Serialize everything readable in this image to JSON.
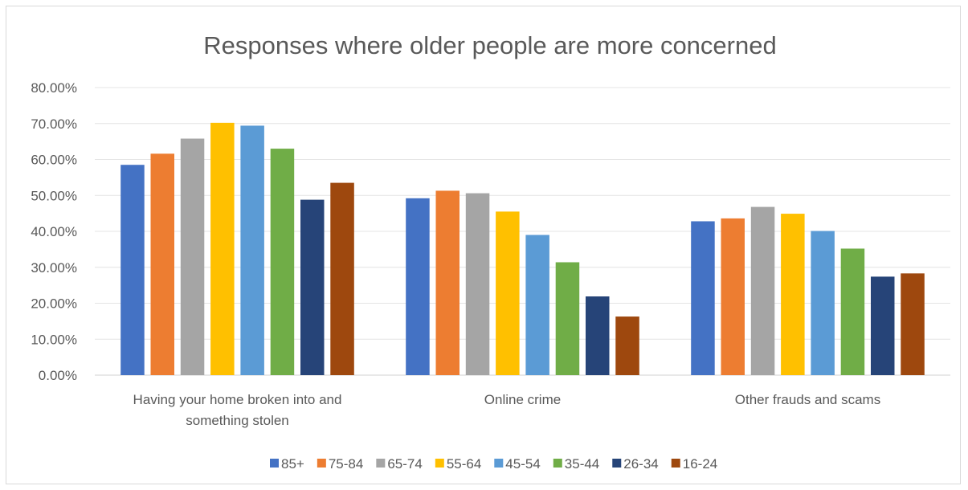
{
  "chart_data": {
    "type": "bar",
    "title": "Responses where older people are more concerned",
    "categories": [
      [
        "Having your home broken into and",
        "something stolen"
      ],
      [
        "Online crime"
      ],
      [
        "Other frauds and scams"
      ]
    ],
    "ylim": [
      0,
      0.8
    ],
    "yticks": [
      "0.00%",
      "10.00%",
      "20.00%",
      "30.00%",
      "40.00%",
      "50.00%",
      "60.00%",
      "70.00%",
      "80.00%"
    ],
    "grid": true,
    "legend_position": "bottom",
    "series": [
      {
        "name": "85+",
        "color": "#4472C4",
        "values": [
          0.585,
          0.492,
          0.428
        ]
      },
      {
        "name": "75-84",
        "color": "#ED7D31",
        "values": [
          0.616,
          0.513,
          0.436
        ]
      },
      {
        "name": "65-74",
        "color": "#A5A5A5",
        "values": [
          0.658,
          0.506,
          0.468
        ]
      },
      {
        "name": "55-64",
        "color": "#FFC000",
        "values": [
          0.702,
          0.455,
          0.449
        ]
      },
      {
        "name": "45-54",
        "color": "#5B9BD5",
        "values": [
          0.694,
          0.39,
          0.401
        ]
      },
      {
        "name": "35-44",
        "color": "#70AD47",
        "values": [
          0.63,
          0.314,
          0.352
        ]
      },
      {
        "name": "26-34",
        "color": "#264478",
        "values": [
          0.488,
          0.219,
          0.274
        ]
      },
      {
        "name": "16-24",
        "color": "#9E480E",
        "values": [
          0.535,
          0.163,
          0.283
        ]
      }
    ]
  }
}
